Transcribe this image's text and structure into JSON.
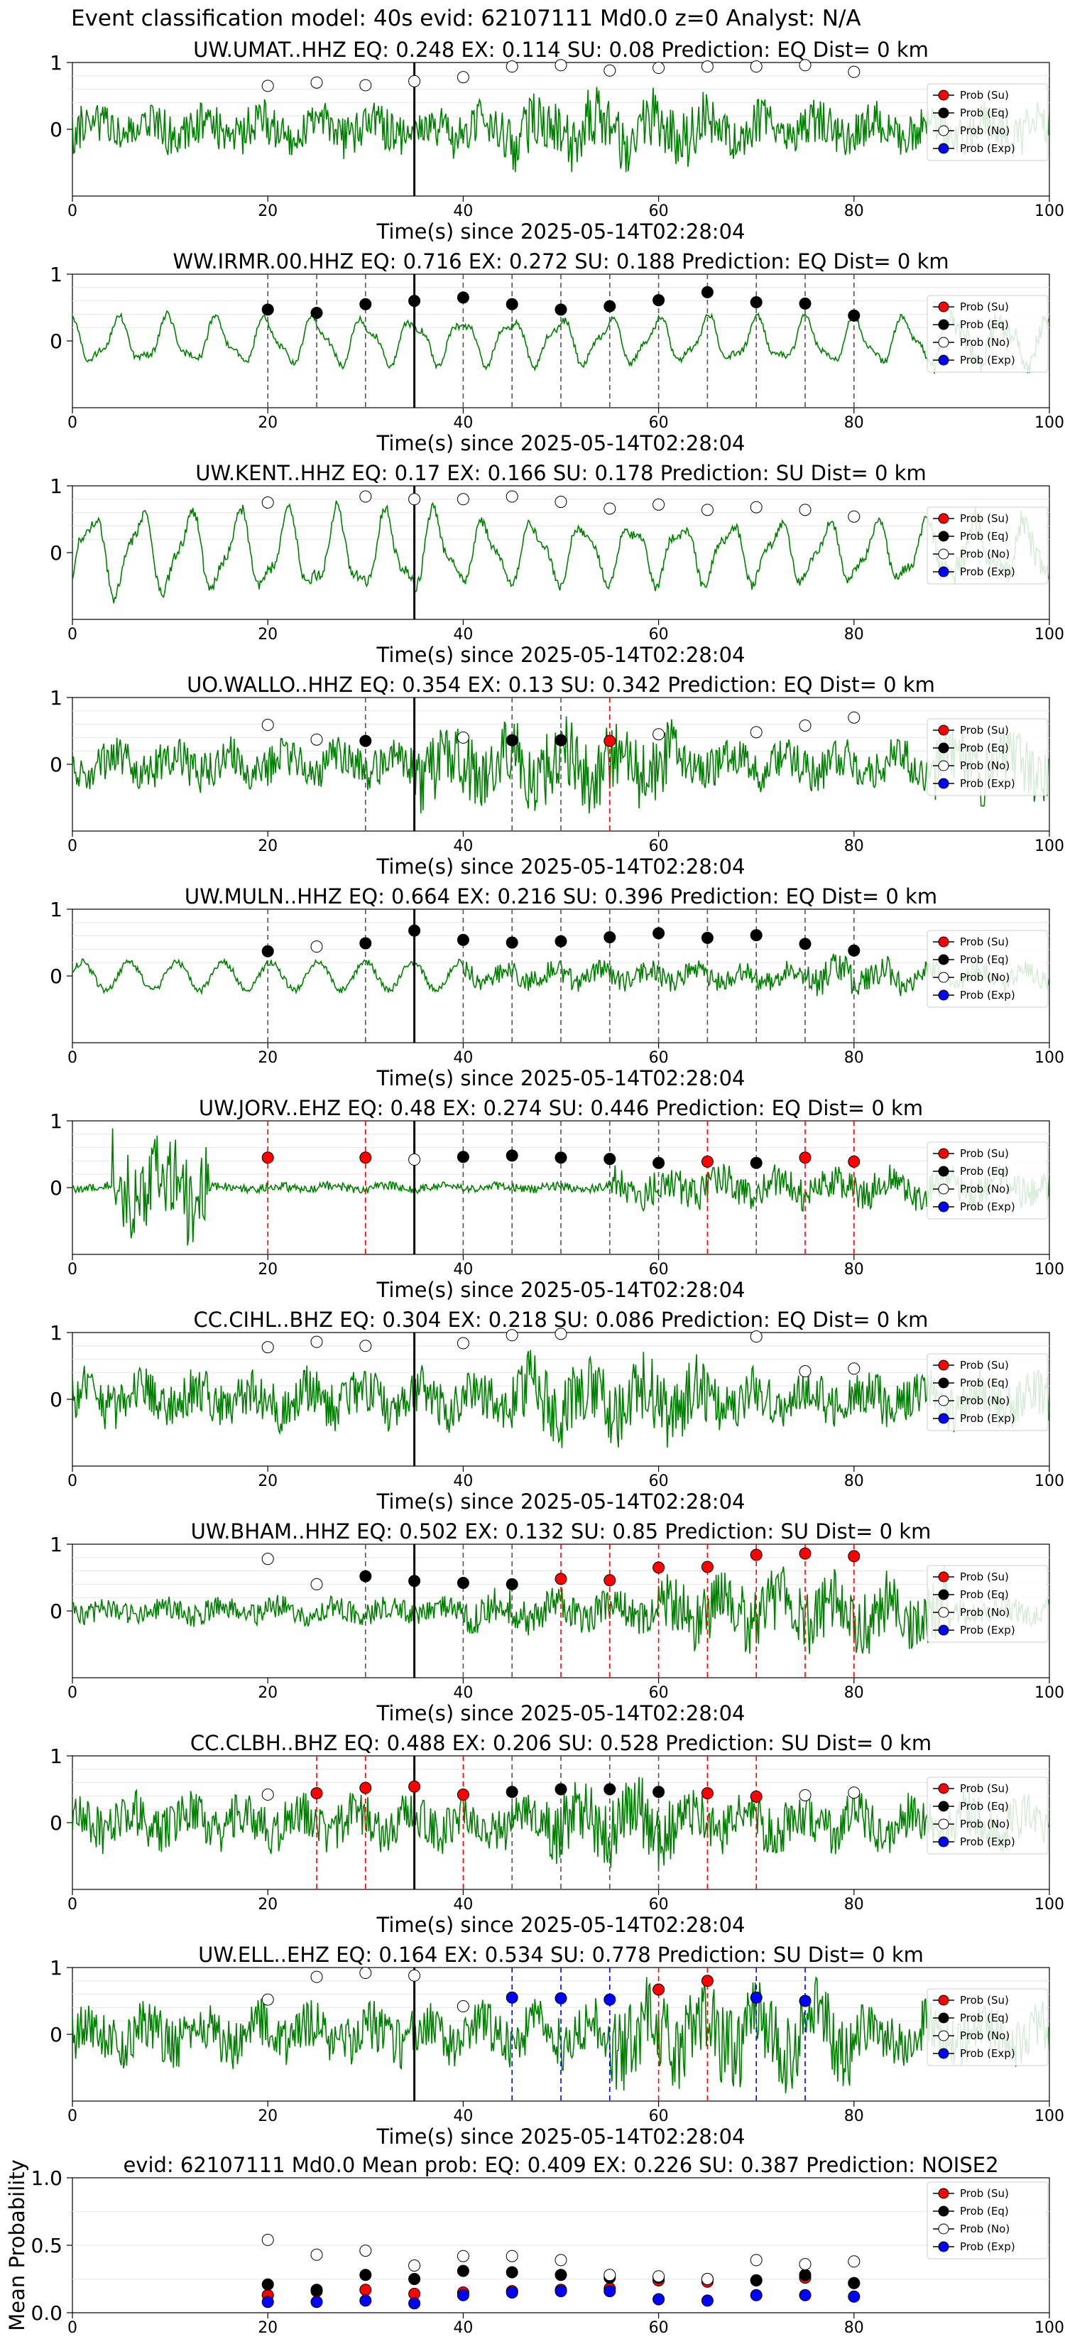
{
  "figure_title": "Event classification model: 40s evid: 62107111 Md0.0 z=0 Analyst: N/A",
  "legend": [
    {
      "label": "Prob (Su)",
      "color": "#ff0000"
    },
    {
      "label": "Prob (Eq)",
      "color": "#000000"
    },
    {
      "label": "Prob (No)",
      "color": "#ffffff"
    },
    {
      "label": "Prob (Exp)",
      "color": "#0000ff"
    }
  ],
  "colors": {
    "waveform": "#008000",
    "su": "#ff0000",
    "eq": "#000000",
    "no": "#ffffff",
    "exp": "#0000ff",
    "pick_line": "#000000"
  },
  "chart_data": [
    {
      "type": "line",
      "title": "UW.UMAT..HHZ   EQ: 0.248  EX: 0.114  SU: 0.08   Prediction: EQ    Dist= 0 km",
      "xlabel": "Time(s) since 2025-05-14T02:28:04",
      "xlim": [
        0,
        100
      ],
      "ylim": [
        -1,
        1
      ],
      "xticks": [
        "0",
        "20",
        "40",
        "60",
        "80",
        "100"
      ],
      "yticks": [
        "1",
        "0"
      ],
      "pick_time": 35,
      "waveform": {
        "style": "noisy-broadband",
        "amplitude": 0.45,
        "seed": 11
      },
      "windows": [
        {
          "t": 20,
          "class": "no",
          "prob": 0.65
        },
        {
          "t": 25,
          "class": "no",
          "prob": 0.7
        },
        {
          "t": 30,
          "class": "no",
          "prob": 0.66
        },
        {
          "t": 35,
          "class": "no",
          "prob": 0.72
        },
        {
          "t": 40,
          "class": "no",
          "prob": 0.78
        },
        {
          "t": 45,
          "class": "no",
          "prob": 0.94
        },
        {
          "t": 50,
          "class": "no",
          "prob": 0.96
        },
        {
          "t": 55,
          "class": "no",
          "prob": 0.88
        },
        {
          "t": 60,
          "class": "no",
          "prob": 0.92
        },
        {
          "t": 65,
          "class": "no",
          "prob": 0.94
        },
        {
          "t": 70,
          "class": "no",
          "prob": 0.94
        },
        {
          "t": 75,
          "class": "no",
          "prob": 0.96
        },
        {
          "t": 80,
          "class": "no",
          "prob": 0.86
        }
      ]
    },
    {
      "type": "line",
      "title": "WW.IRMR.00.HHZ   EQ: 0.716  EX: 0.272  SU: 0.188   Prediction: EQ    Dist= 0 km",
      "xlabel": "Time(s) since 2025-05-14T02:28:04",
      "xlim": [
        0,
        100
      ],
      "ylim": [
        -1,
        1
      ],
      "xticks": [
        "0",
        "20",
        "40",
        "60",
        "80",
        "100"
      ],
      "yticks": [
        "1",
        "0"
      ],
      "pick_time": 35,
      "waveform": {
        "style": "oscillatory",
        "amplitude": 0.4,
        "seed": 22
      },
      "windows": [
        {
          "t": 20,
          "class": "eq",
          "prob": 0.47
        },
        {
          "t": 25,
          "class": "eq",
          "prob": 0.42
        },
        {
          "t": 30,
          "class": "eq",
          "prob": 0.55
        },
        {
          "t": 35,
          "class": "eq",
          "prob": 0.6
        },
        {
          "t": 40,
          "class": "eq",
          "prob": 0.65
        },
        {
          "t": 45,
          "class": "eq",
          "prob": 0.55
        },
        {
          "t": 50,
          "class": "eq",
          "prob": 0.47
        },
        {
          "t": 55,
          "class": "eq",
          "prob": 0.52
        },
        {
          "t": 60,
          "class": "eq",
          "prob": 0.61
        },
        {
          "t": 65,
          "class": "eq",
          "prob": 0.73
        },
        {
          "t": 70,
          "class": "eq",
          "prob": 0.58
        },
        {
          "t": 75,
          "class": "eq",
          "prob": 0.56
        },
        {
          "t": 80,
          "class": "eq",
          "prob": 0.38
        }
      ]
    },
    {
      "type": "line",
      "title": "UW.KENT..HHZ   EQ: 0.17  EX: 0.166  SU: 0.178   Prediction: SU    Dist= 0 km",
      "xlabel": "Time(s) since 2025-05-14T02:28:04",
      "xlim": [
        0,
        100
      ],
      "ylim": [
        -1,
        1
      ],
      "xticks": [
        "0",
        "20",
        "40",
        "60",
        "80",
        "100"
      ],
      "yticks": [
        "1",
        "0"
      ],
      "pick_time": 35,
      "waveform": {
        "style": "oscillatory-large",
        "amplitude": 0.7,
        "seed": 33
      },
      "windows": [
        {
          "t": 20,
          "class": "no",
          "prob": 0.75
        },
        {
          "t": 30,
          "class": "no",
          "prob": 0.84
        },
        {
          "t": 35,
          "class": "no",
          "prob": 0.8
        },
        {
          "t": 40,
          "class": "no",
          "prob": 0.8
        },
        {
          "t": 45,
          "class": "no",
          "prob": 0.84
        },
        {
          "t": 50,
          "class": "no",
          "prob": 0.76
        },
        {
          "t": 55,
          "class": "no",
          "prob": 0.66
        },
        {
          "t": 60,
          "class": "no",
          "prob": 0.72
        },
        {
          "t": 65,
          "class": "no",
          "prob": 0.64
        },
        {
          "t": 70,
          "class": "no",
          "prob": 0.68
        },
        {
          "t": 75,
          "class": "no",
          "prob": 0.64
        },
        {
          "t": 80,
          "class": "no",
          "prob": 0.54
        }
      ]
    },
    {
      "type": "line",
      "title": "UO.WALLO..HHZ   EQ: 0.354  EX: 0.13  SU: 0.342   Prediction: EQ    Dist= 0 km",
      "xlabel": "Time(s) since 2025-05-14T02:28:04",
      "xlim": [
        0,
        100
      ],
      "ylim": [
        -1,
        1
      ],
      "xticks": [
        "0",
        "20",
        "40",
        "60",
        "80",
        "100"
      ],
      "yticks": [
        "1",
        "0"
      ],
      "pick_time": 35,
      "waveform": {
        "style": "noisy-burst",
        "amplitude": 0.5,
        "seed": 44
      },
      "windows": [
        {
          "t": 20,
          "class": "no",
          "prob": 0.59
        },
        {
          "t": 25,
          "class": "no",
          "prob": 0.37
        },
        {
          "t": 30,
          "class": "eq",
          "prob": 0.35
        },
        {
          "t": 40,
          "class": "no",
          "prob": 0.4
        },
        {
          "t": 45,
          "class": "eq",
          "prob": 0.36
        },
        {
          "t": 50,
          "class": "eq",
          "prob": 0.36
        },
        {
          "t": 55,
          "class": "su",
          "prob": 0.35
        },
        {
          "t": 60,
          "class": "no",
          "prob": 0.45
        },
        {
          "t": 70,
          "class": "no",
          "prob": 0.48
        },
        {
          "t": 75,
          "class": "no",
          "prob": 0.58
        },
        {
          "t": 80,
          "class": "no",
          "prob": 0.7
        }
      ]
    },
    {
      "type": "line",
      "title": "UW.MULN..HHZ   EQ: 0.664  EX: 0.216  SU: 0.396   Prediction: EQ    Dist= 0 km",
      "xlabel": "Time(s) since 2025-05-14T02:28:04",
      "xlim": [
        0,
        100
      ],
      "ylim": [
        -1,
        1
      ],
      "xticks": [
        "0",
        "20",
        "40",
        "60",
        "80",
        "100"
      ],
      "yticks": [
        "1",
        "0"
      ],
      "pick_time": 35,
      "waveform": {
        "style": "wavy-then-noisy",
        "amplitude": 0.35,
        "seed": 55
      },
      "windows": [
        {
          "t": 20,
          "class": "eq",
          "prob": 0.37
        },
        {
          "t": 25,
          "class": "no",
          "prob": 0.44
        },
        {
          "t": 30,
          "class": "eq",
          "prob": 0.49
        },
        {
          "t": 35,
          "class": "eq",
          "prob": 0.68
        },
        {
          "t": 40,
          "class": "eq",
          "prob": 0.54
        },
        {
          "t": 45,
          "class": "eq",
          "prob": 0.5
        },
        {
          "t": 50,
          "class": "eq",
          "prob": 0.52
        },
        {
          "t": 55,
          "class": "eq",
          "prob": 0.58
        },
        {
          "t": 60,
          "class": "eq",
          "prob": 0.64
        },
        {
          "t": 65,
          "class": "eq",
          "prob": 0.57
        },
        {
          "t": 70,
          "class": "eq",
          "prob": 0.61
        },
        {
          "t": 75,
          "class": "eq",
          "prob": 0.48
        },
        {
          "t": 80,
          "class": "eq",
          "prob": 0.38
        }
      ]
    },
    {
      "type": "line",
      "title": "UW.JORV..EHZ   EQ: 0.48  EX: 0.274  SU: 0.446   Prediction: EQ    Dist= 0 km",
      "xlabel": "Time(s) since 2025-05-14T02:28:04",
      "xlim": [
        0,
        100
      ],
      "ylim": [
        -1,
        1
      ],
      "xticks": [
        "0",
        "20",
        "40",
        "60",
        "80",
        "100"
      ],
      "yticks": [
        "1",
        "0"
      ],
      "pick_time": 35,
      "waveform": {
        "style": "early-burst-quiet",
        "amplitude": 0.8,
        "seed": 66
      },
      "windows": [
        {
          "t": 20,
          "class": "su",
          "prob": 0.45
        },
        {
          "t": 30,
          "class": "su",
          "prob": 0.45
        },
        {
          "t": 35,
          "class": "no",
          "prob": 0.42
        },
        {
          "t": 40,
          "class": "eq",
          "prob": 0.46
        },
        {
          "t": 45,
          "class": "eq",
          "prob": 0.48
        },
        {
          "t": 50,
          "class": "eq",
          "prob": 0.45
        },
        {
          "t": 55,
          "class": "eq",
          "prob": 0.43
        },
        {
          "t": 60,
          "class": "eq",
          "prob": 0.37
        },
        {
          "t": 65,
          "class": "su",
          "prob": 0.39
        },
        {
          "t": 70,
          "class": "eq",
          "prob": 0.37
        },
        {
          "t": 75,
          "class": "su",
          "prob": 0.45
        },
        {
          "t": 80,
          "class": "su",
          "prob": 0.39
        }
      ]
    },
    {
      "type": "line",
      "title": "CC.CIHL..BHZ   EQ: 0.304  EX: 0.218  SU: 0.086   Prediction: EQ    Dist= 0 km",
      "xlabel": "Time(s) since 2025-05-14T02:28:04",
      "xlim": [
        0,
        100
      ],
      "ylim": [
        -1,
        1
      ],
      "xticks": [
        "0",
        "20",
        "40",
        "60",
        "80",
        "100"
      ],
      "yticks": [
        "1",
        "0"
      ],
      "pick_time": 35,
      "waveform": {
        "style": "noisy-broadband",
        "amplitude": 0.5,
        "seed": 77
      },
      "windows": [
        {
          "t": 20,
          "class": "no",
          "prob": 0.78
        },
        {
          "t": 25,
          "class": "no",
          "prob": 0.86
        },
        {
          "t": 30,
          "class": "no",
          "prob": 0.8
        },
        {
          "t": 40,
          "class": "no",
          "prob": 0.84
        },
        {
          "t": 45,
          "class": "no",
          "prob": 0.96
        },
        {
          "t": 50,
          "class": "no",
          "prob": 0.98
        },
        {
          "t": 70,
          "class": "no",
          "prob": 0.94
        },
        {
          "t": 75,
          "class": "no",
          "prob": 0.42
        },
        {
          "t": 80,
          "class": "no",
          "prob": 0.46
        }
      ]
    },
    {
      "type": "line",
      "title": "UW.BHAM..HHZ   EQ: 0.502  EX: 0.132  SU: 0.85   Prediction: SU    Dist= 0 km",
      "xlabel": "Time(s) since 2025-05-14T02:28:04",
      "xlim": [
        0,
        100
      ],
      "ylim": [
        -1,
        1
      ],
      "xticks": [
        "0",
        "20",
        "40",
        "60",
        "80",
        "100"
      ],
      "yticks": [
        "1",
        "0"
      ],
      "pick_time": 35,
      "waveform": {
        "style": "growing-noise",
        "amplitude": 0.6,
        "seed": 88
      },
      "windows": [
        {
          "t": 20,
          "class": "no",
          "prob": 0.78
        },
        {
          "t": 25,
          "class": "no",
          "prob": 0.4
        },
        {
          "t": 30,
          "class": "eq",
          "prob": 0.52
        },
        {
          "t": 35,
          "class": "eq",
          "prob": 0.45
        },
        {
          "t": 40,
          "class": "eq",
          "prob": 0.42
        },
        {
          "t": 45,
          "class": "eq",
          "prob": 0.4
        },
        {
          "t": 50,
          "class": "su",
          "prob": 0.48
        },
        {
          "t": 55,
          "class": "su",
          "prob": 0.46
        },
        {
          "t": 60,
          "class": "su",
          "prob": 0.65
        },
        {
          "t": 65,
          "class": "su",
          "prob": 0.66
        },
        {
          "t": 70,
          "class": "su",
          "prob": 0.84
        },
        {
          "t": 75,
          "class": "su",
          "prob": 0.86
        },
        {
          "t": 80,
          "class": "su",
          "prob": 0.82
        }
      ]
    },
    {
      "type": "line",
      "title": "CC.CLBH..BHZ   EQ: 0.488  EX: 0.206  SU: 0.528   Prediction: SU    Dist= 0 km",
      "xlabel": "Time(s) since 2025-05-14T02:28:04",
      "xlim": [
        0,
        100
      ],
      "ylim": [
        -1,
        1
      ],
      "xticks": [
        "0",
        "20",
        "40",
        "60",
        "80",
        "100"
      ],
      "yticks": [
        "1",
        "0"
      ],
      "pick_time": 35,
      "waveform": {
        "style": "spiky-noise",
        "amplitude": 0.55,
        "seed": 99
      },
      "windows": [
        {
          "t": 20,
          "class": "no",
          "prob": 0.42
        },
        {
          "t": 25,
          "class": "su",
          "prob": 0.44
        },
        {
          "t": 30,
          "class": "su",
          "prob": 0.52
        },
        {
          "t": 35,
          "class": "su",
          "prob": 0.54
        },
        {
          "t": 40,
          "class": "su",
          "prob": 0.42
        },
        {
          "t": 45,
          "class": "eq",
          "prob": 0.46
        },
        {
          "t": 50,
          "class": "eq",
          "prob": 0.5
        },
        {
          "t": 55,
          "class": "eq",
          "prob": 0.5
        },
        {
          "t": 60,
          "class": "eq",
          "prob": 0.46
        },
        {
          "t": 65,
          "class": "su",
          "prob": 0.44
        },
        {
          "t": 70,
          "class": "su",
          "prob": 0.39
        },
        {
          "t": 75,
          "class": "no",
          "prob": 0.41
        },
        {
          "t": 80,
          "class": "no",
          "prob": 0.45
        }
      ]
    },
    {
      "type": "line",
      "title": "UW.ELL..EHZ   EQ: 0.164  EX: 0.534  SU: 0.778   Prediction: SU    Dist= 0 km",
      "xlabel": "Time(s) since 2025-05-14T02:28:04",
      "xlim": [
        0,
        100
      ],
      "ylim": [
        -1,
        1
      ],
      "xticks": [
        "0",
        "20",
        "40",
        "60",
        "80",
        "100"
      ],
      "yticks": [
        "1",
        "0"
      ],
      "pick_time": 35,
      "waveform": {
        "style": "spiky-noise-late",
        "amplitude": 0.6,
        "seed": 111
      },
      "windows": [
        {
          "t": 20,
          "class": "no",
          "prob": 0.52
        },
        {
          "t": 25,
          "class": "no",
          "prob": 0.86
        },
        {
          "t": 30,
          "class": "no",
          "prob": 0.92
        },
        {
          "t": 35,
          "class": "no",
          "prob": 0.88
        },
        {
          "t": 40,
          "class": "no",
          "prob": 0.42
        },
        {
          "t": 45,
          "class": "exp",
          "prob": 0.55
        },
        {
          "t": 50,
          "class": "exp",
          "prob": 0.54
        },
        {
          "t": 55,
          "class": "exp",
          "prob": 0.52
        },
        {
          "t": 60,
          "class": "su",
          "prob": 0.67
        },
        {
          "t": 65,
          "class": "su",
          "prob": 0.8
        },
        {
          "t": 70,
          "class": "exp",
          "prob": 0.55
        },
        {
          "t": 75,
          "class": "exp",
          "prob": 0.5
        }
      ]
    },
    {
      "type": "scatter",
      "title": "evid: 62107111  Md0.0   Mean prob:   EQ: 0.409  EX: 0.226  SU: 0.387   Prediction: NOISE2",
      "ylabel": "Mean Probability",
      "xlim": [
        0,
        100
      ],
      "ylim": [
        0,
        1
      ],
      "xticks": [
        "0",
        "20",
        "40",
        "60",
        "80",
        "100"
      ],
      "yticks": [
        "1.0",
        "0.5",
        "0.0"
      ],
      "x": [
        20,
        25,
        30,
        35,
        40,
        45,
        50,
        55,
        60,
        65,
        70,
        75,
        80
      ],
      "series": [
        {
          "name": "Prob (Su)",
          "class": "su",
          "values": [
            0.13,
            0.16,
            0.17,
            0.14,
            0.15,
            0.16,
            0.17,
            0.18,
            0.24,
            0.23,
            0.24,
            0.26,
            0.22
          ]
        },
        {
          "name": "Prob (Eq)",
          "class": "eq",
          "values": [
            0.21,
            0.17,
            0.28,
            0.25,
            0.31,
            0.3,
            0.28,
            0.26,
            0.26,
            0.25,
            0.24,
            0.28,
            0.22
          ]
        },
        {
          "name": "Prob (No)",
          "class": "no",
          "values": [
            0.54,
            0.43,
            0.46,
            0.35,
            0.42,
            0.42,
            0.39,
            0.28,
            0.27,
            0.25,
            0.39,
            0.36,
            0.38
          ]
        },
        {
          "name": "Prob (Exp)",
          "class": "exp",
          "values": [
            0.08,
            0.08,
            0.09,
            0.07,
            0.13,
            0.15,
            0.16,
            0.16,
            0.1,
            0.09,
            0.13,
            0.13,
            0.12
          ]
        }
      ]
    }
  ]
}
